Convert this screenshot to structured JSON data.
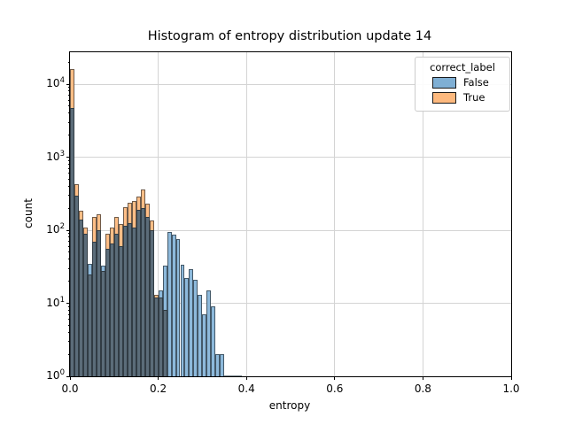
{
  "title": "Histogram of entropy distribution update 14",
  "axes": {
    "xlabel": "entropy",
    "ylabel": "count",
    "x_ticks": [
      {
        "label": "0.0",
        "value": 0.0
      },
      {
        "label": "0.2",
        "value": 0.2
      },
      {
        "label": "0.4",
        "value": 0.4
      },
      {
        "label": "0.6",
        "value": 0.6
      },
      {
        "label": "0.8",
        "value": 0.8
      },
      {
        "label": "1.0",
        "value": 1.0
      }
    ],
    "y_ticks": [
      {
        "base": "10",
        "exp": "0"
      },
      {
        "base": "10",
        "exp": "1"
      },
      {
        "base": "10",
        "exp": "2"
      },
      {
        "base": "10",
        "exp": "3"
      },
      {
        "base": "10",
        "exp": "4"
      }
    ]
  },
  "legend": {
    "title": "correct_label",
    "entries": [
      {
        "label": "False",
        "color": "#7fafd4"
      },
      {
        "label": "True",
        "color": "#fdb97e"
      }
    ]
  },
  "colors": {
    "fill_false": "#8db9db",
    "fill_true": "#ffbe86",
    "fill_overlap": "#5b6c79",
    "grid": "#d4d4d4",
    "edge": "rgba(25,30,35,0.62)"
  },
  "chart_data": {
    "type": "bar",
    "subtype": "overlaid-histogram",
    "title": "Histogram of entropy distribution update 14",
    "xlabel": "entropy",
    "ylabel": "count",
    "x_range": [
      0.0,
      1.0
    ],
    "y_scale": "log",
    "y_range": [
      1,
      27000
    ],
    "grid": true,
    "legend_title": "correct_label",
    "legend_position": "upper right",
    "bin_width": 0.01,
    "bin_start": 0.0,
    "bin_starts": [
      0.0,
      0.01,
      0.02,
      0.03,
      0.04,
      0.05,
      0.06,
      0.07,
      0.08,
      0.09,
      0.1,
      0.11,
      0.12,
      0.13,
      0.14,
      0.15,
      0.16,
      0.17,
      0.18,
      0.19,
      0.2,
      0.21,
      0.22,
      0.23,
      0.24,
      0.25,
      0.26,
      0.27,
      0.28,
      0.29,
      0.3,
      0.31,
      0.32,
      0.33,
      0.34,
      0.35,
      0.36,
      0.37,
      0.38
    ],
    "series": [
      {
        "name": "False",
        "values": [
          4700,
          300,
          140,
          90,
          35,
          70,
          100,
          33,
          55,
          65,
          90,
          60,
          115,
          125,
          110,
          190,
          200,
          150,
          100,
          12,
          15,
          33,
          95,
          87,
          75,
          34,
          22,
          29,
          21,
          13,
          7,
          15,
          9,
          2,
          2,
          1,
          1,
          1,
          1
        ]
      },
      {
        "name": "True",
        "values": [
          16000,
          430,
          185,
          110,
          25,
          150,
          165,
          28,
          90,
          110,
          150,
          120,
          205,
          235,
          250,
          290,
          360,
          230,
          135,
          13,
          12,
          8,
          0,
          0,
          0,
          0,
          0,
          0,
          0,
          0,
          0,
          0,
          0,
          0,
          0,
          0,
          0,
          0,
          0
        ]
      }
    ]
  }
}
